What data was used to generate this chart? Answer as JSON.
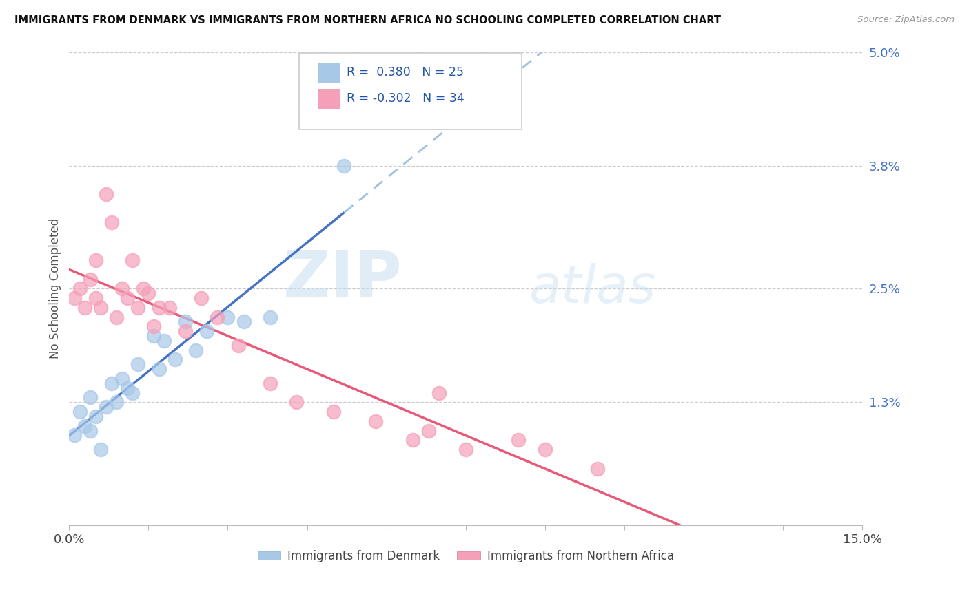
{
  "title": "IMMIGRANTS FROM DENMARK VS IMMIGRANTS FROM NORTHERN AFRICA NO SCHOOLING COMPLETED CORRELATION CHART",
  "source": "Source: ZipAtlas.com",
  "ylabel": "No Schooling Completed",
  "xlim": [
    0.0,
    0.15
  ],
  "ylim": [
    0.0,
    0.05
  ],
  "right_yticks": [
    0.05,
    0.038,
    0.025,
    0.013
  ],
  "right_yticklabels": [
    "5.0%",
    "3.8%",
    "2.5%",
    "1.3%"
  ],
  "color_denmark": "#a8c8e8",
  "color_n_africa": "#f4a0b8",
  "color_trendline_denmark": "#4472c4",
  "color_trendline_n_africa": "#e85878",
  "color_dashed_extension": "#a0c0e0",
  "watermark_zip": "ZIP",
  "watermark_atlas": "atlas",
  "background_color": "#ffffff",
  "dk_R": 0.38,
  "dk_N": 25,
  "na_R": -0.302,
  "na_N": 34,
  "denmark_x": [
    0.001,
    0.002,
    0.003,
    0.004,
    0.004,
    0.005,
    0.006,
    0.007,
    0.008,
    0.009,
    0.01,
    0.011,
    0.012,
    0.013,
    0.016,
    0.017,
    0.018,
    0.02,
    0.022,
    0.024,
    0.026,
    0.03,
    0.033,
    0.038,
    0.052
  ],
  "denmark_y": [
    0.0095,
    0.012,
    0.0105,
    0.01,
    0.0135,
    0.0115,
    0.008,
    0.0125,
    0.015,
    0.013,
    0.0155,
    0.0145,
    0.014,
    0.017,
    0.02,
    0.0165,
    0.0195,
    0.0175,
    0.0215,
    0.0185,
    0.0205,
    0.022,
    0.0215,
    0.022,
    0.038
  ],
  "n_africa_x": [
    0.001,
    0.002,
    0.003,
    0.004,
    0.005,
    0.005,
    0.006,
    0.007,
    0.008,
    0.009,
    0.01,
    0.011,
    0.012,
    0.013,
    0.014,
    0.015,
    0.016,
    0.017,
    0.019,
    0.022,
    0.025,
    0.028,
    0.032,
    0.038,
    0.043,
    0.05,
    0.058,
    0.065,
    0.068,
    0.07,
    0.075,
    0.085,
    0.09,
    0.1
  ],
  "n_africa_y": [
    0.024,
    0.025,
    0.023,
    0.026,
    0.028,
    0.024,
    0.023,
    0.035,
    0.032,
    0.022,
    0.025,
    0.024,
    0.028,
    0.023,
    0.025,
    0.0245,
    0.021,
    0.023,
    0.023,
    0.0205,
    0.024,
    0.022,
    0.019,
    0.015,
    0.013,
    0.012,
    0.011,
    0.009,
    0.01,
    0.014,
    0.008,
    0.009,
    0.008,
    0.006
  ]
}
